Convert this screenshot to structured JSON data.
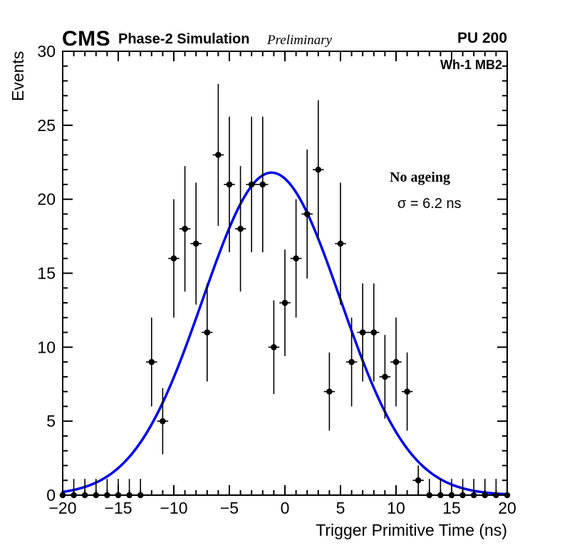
{
  "header": {
    "cms": "CMS",
    "subtitle": "Phase-2 Simulation",
    "preliminary": "Preliminary",
    "pileup": "PU 200"
  },
  "plot_labels": {
    "chamber": "Wh-1 MB2",
    "ageing": "No ageing",
    "sigma_text": "σ = 6.2 ns"
  },
  "chart_data": {
    "type": "scatter",
    "title": "",
    "xlabel": "Trigger Primitive Time (ns)",
    "ylabel": "Events",
    "xlim": [
      -20,
      20
    ],
    "ylim": [
      0,
      30
    ],
    "x_major_ticks": [
      -20,
      -15,
      -10,
      -5,
      0,
      5,
      10,
      15,
      20
    ],
    "y_major_ticks": [
      0,
      5,
      10,
      15,
      20,
      25,
      30
    ],
    "x_minor_step": 1,
    "y_minor_step": 1,
    "grid": false,
    "legend": "none",
    "points": [
      [
        -20,
        0
      ],
      [
        -19,
        0
      ],
      [
        -18,
        0
      ],
      [
        -17,
        0
      ],
      [
        -16,
        0
      ],
      [
        -15,
        0
      ],
      [
        -14,
        0
      ],
      [
        -13,
        0
      ],
      [
        -12,
        9
      ],
      [
        -11,
        5
      ],
      [
        -10,
        16
      ],
      [
        -9,
        18
      ],
      [
        -8,
        17
      ],
      [
        -7,
        11
      ],
      [
        -6,
        23
      ],
      [
        -5,
        21
      ],
      [
        -4,
        18
      ],
      [
        -3,
        21
      ],
      [
        -2,
        21
      ],
      [
        -1,
        10
      ],
      [
        0,
        13
      ],
      [
        1,
        16
      ],
      [
        2,
        19
      ],
      [
        3,
        22
      ],
      [
        4,
        7
      ],
      [
        5,
        17
      ],
      [
        6,
        9
      ],
      [
        7,
        11
      ],
      [
        8,
        11
      ],
      [
        9,
        8
      ],
      [
        10,
        9
      ],
      [
        11,
        7
      ],
      [
        12,
        1
      ],
      [
        13,
        0
      ],
      [
        14,
        0
      ],
      [
        15,
        0
      ],
      [
        16,
        0
      ],
      [
        17,
        0
      ],
      [
        18,
        0
      ],
      [
        19,
        0
      ],
      [
        20,
        0
      ]
    ],
    "errors": "poisson_sqrt",
    "zero_error_up": 1.1,
    "x_half_bin": 0.5,
    "marker_color": "#000000",
    "marker_radius": 4.3,
    "fit": {
      "type": "gaussian",
      "amplitude": 21.8,
      "mean": -1.2,
      "sigma": 6.2,
      "sigma_ns": 6.2,
      "color": "#0000e6",
      "line_width": 3.5
    }
  }
}
